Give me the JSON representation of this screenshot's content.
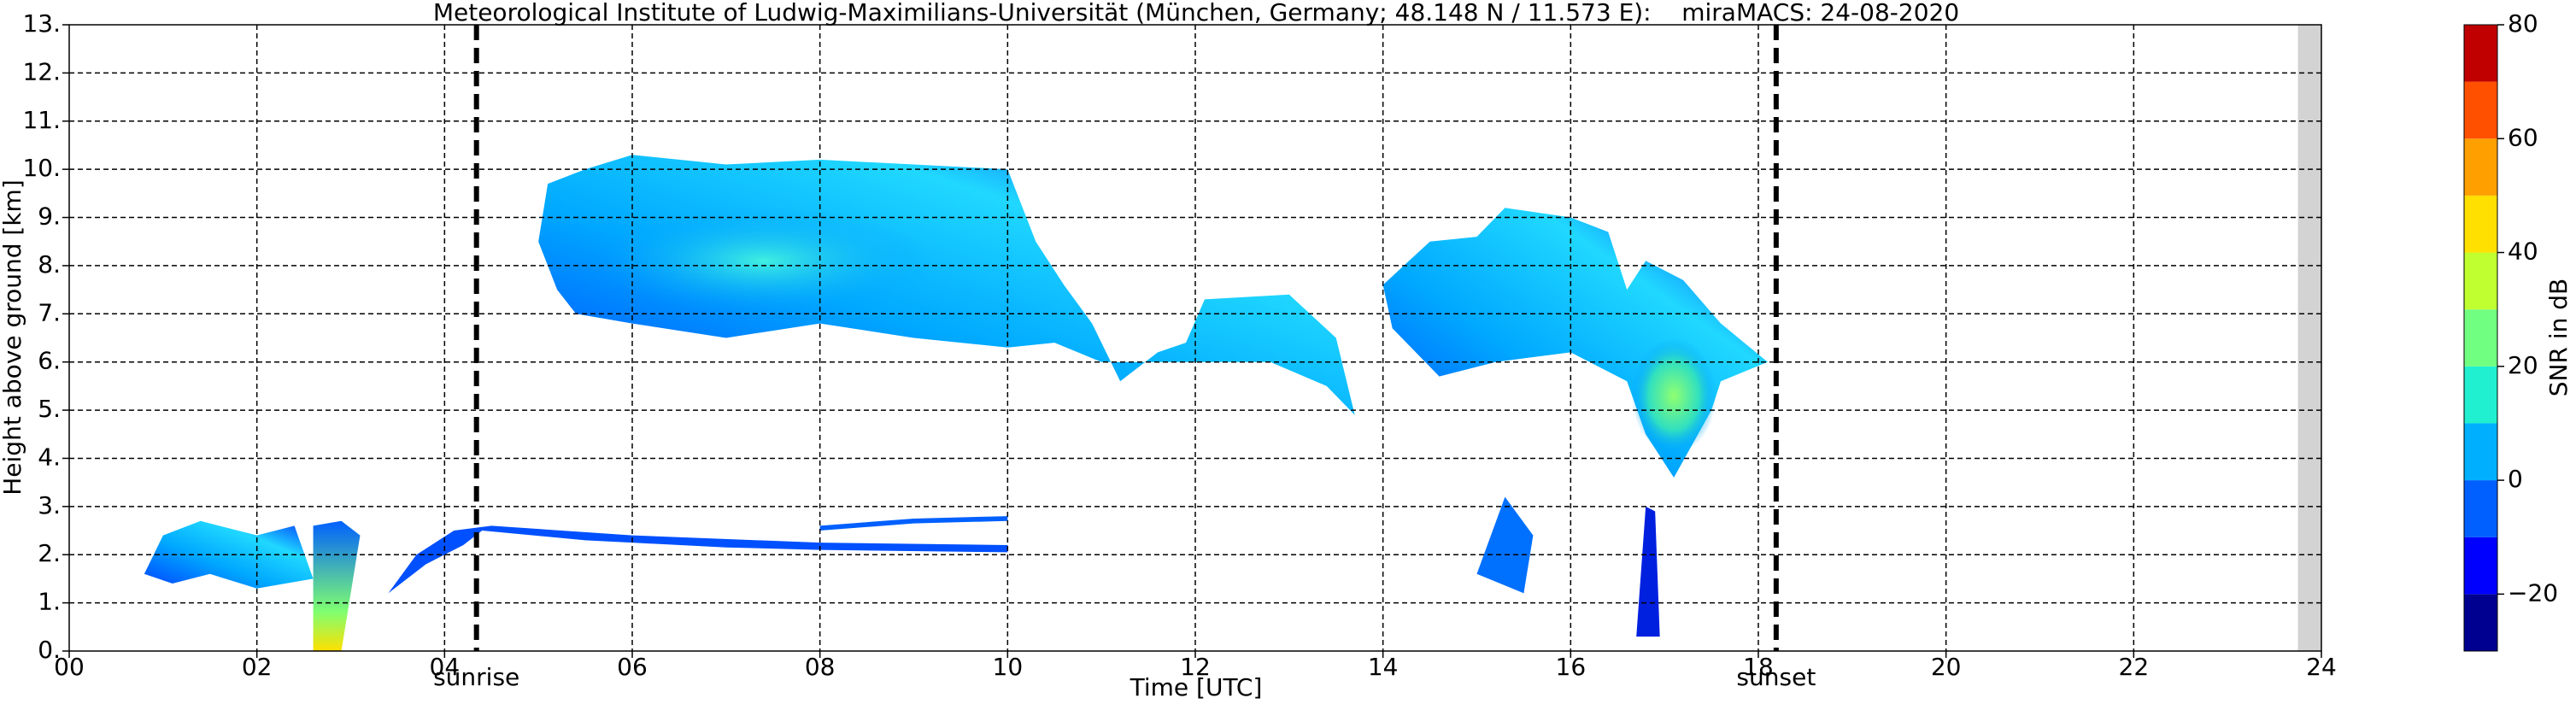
{
  "chart_data": {
    "type": "heatmap",
    "title": "Meteorological Institute of Ludwig-Maximilians-Universität (München, Germany; 48.148 N / 11.573 E):    miraMACS: 24-08-2020",
    "xlabel": "Time [UTC]",
    "ylabel": "Height above ground [km]",
    "xlim": [
      0,
      24
    ],
    "ylim": [
      0,
      13
    ],
    "xticks": [
      {
        "value": 0,
        "label": "00"
      },
      {
        "value": 2,
        "label": "02"
      },
      {
        "value": 4,
        "label": "04"
      },
      {
        "value": 6,
        "label": "06"
      },
      {
        "value": 8,
        "label": "08"
      },
      {
        "value": 10,
        "label": "10"
      },
      {
        "value": 12,
        "label": "12"
      },
      {
        "value": 14,
        "label": "14"
      },
      {
        "value": 16,
        "label": "16"
      },
      {
        "value": 18,
        "label": "18"
      },
      {
        "value": 20,
        "label": "20"
      },
      {
        "value": 22,
        "label": "22"
      },
      {
        "value": 24,
        "label": "24"
      }
    ],
    "yticks": [
      {
        "value": 0,
        "label": "0."
      },
      {
        "value": 1,
        "label": "1."
      },
      {
        "value": 2,
        "label": "2."
      },
      {
        "value": 3,
        "label": "3."
      },
      {
        "value": 4,
        "label": "4."
      },
      {
        "value": 5,
        "label": "5."
      },
      {
        "value": 6,
        "label": "6."
      },
      {
        "value": 7,
        "label": "7."
      },
      {
        "value": 8,
        "label": "8."
      },
      {
        "value": 9,
        "label": "9."
      },
      {
        "value": 10,
        "label": "10."
      },
      {
        "value": 11,
        "label": "11."
      },
      {
        "value": 12,
        "label": "12."
      },
      {
        "value": 13,
        "label": "13."
      }
    ],
    "grid": true,
    "markers": [
      {
        "x": 4.34,
        "label": "sunrise"
      },
      {
        "x": 18.19,
        "label": "sunset"
      }
    ],
    "colorbar": {
      "label": "SNR in dB",
      "lim": [
        -30,
        80
      ],
      "ticks": [
        {
          "value": -20,
          "label": "−20"
        },
        0,
        20,
        40,
        60,
        80
      ],
      "colors": [
        "#000090",
        "#0000ff",
        "#0060ff",
        "#00b0ff",
        "#20f0d0",
        "#70ff80",
        "#c0ff30",
        "#ffe000",
        "#ffa000",
        "#ff5000",
        "#c00000"
      ]
    }
  }
}
